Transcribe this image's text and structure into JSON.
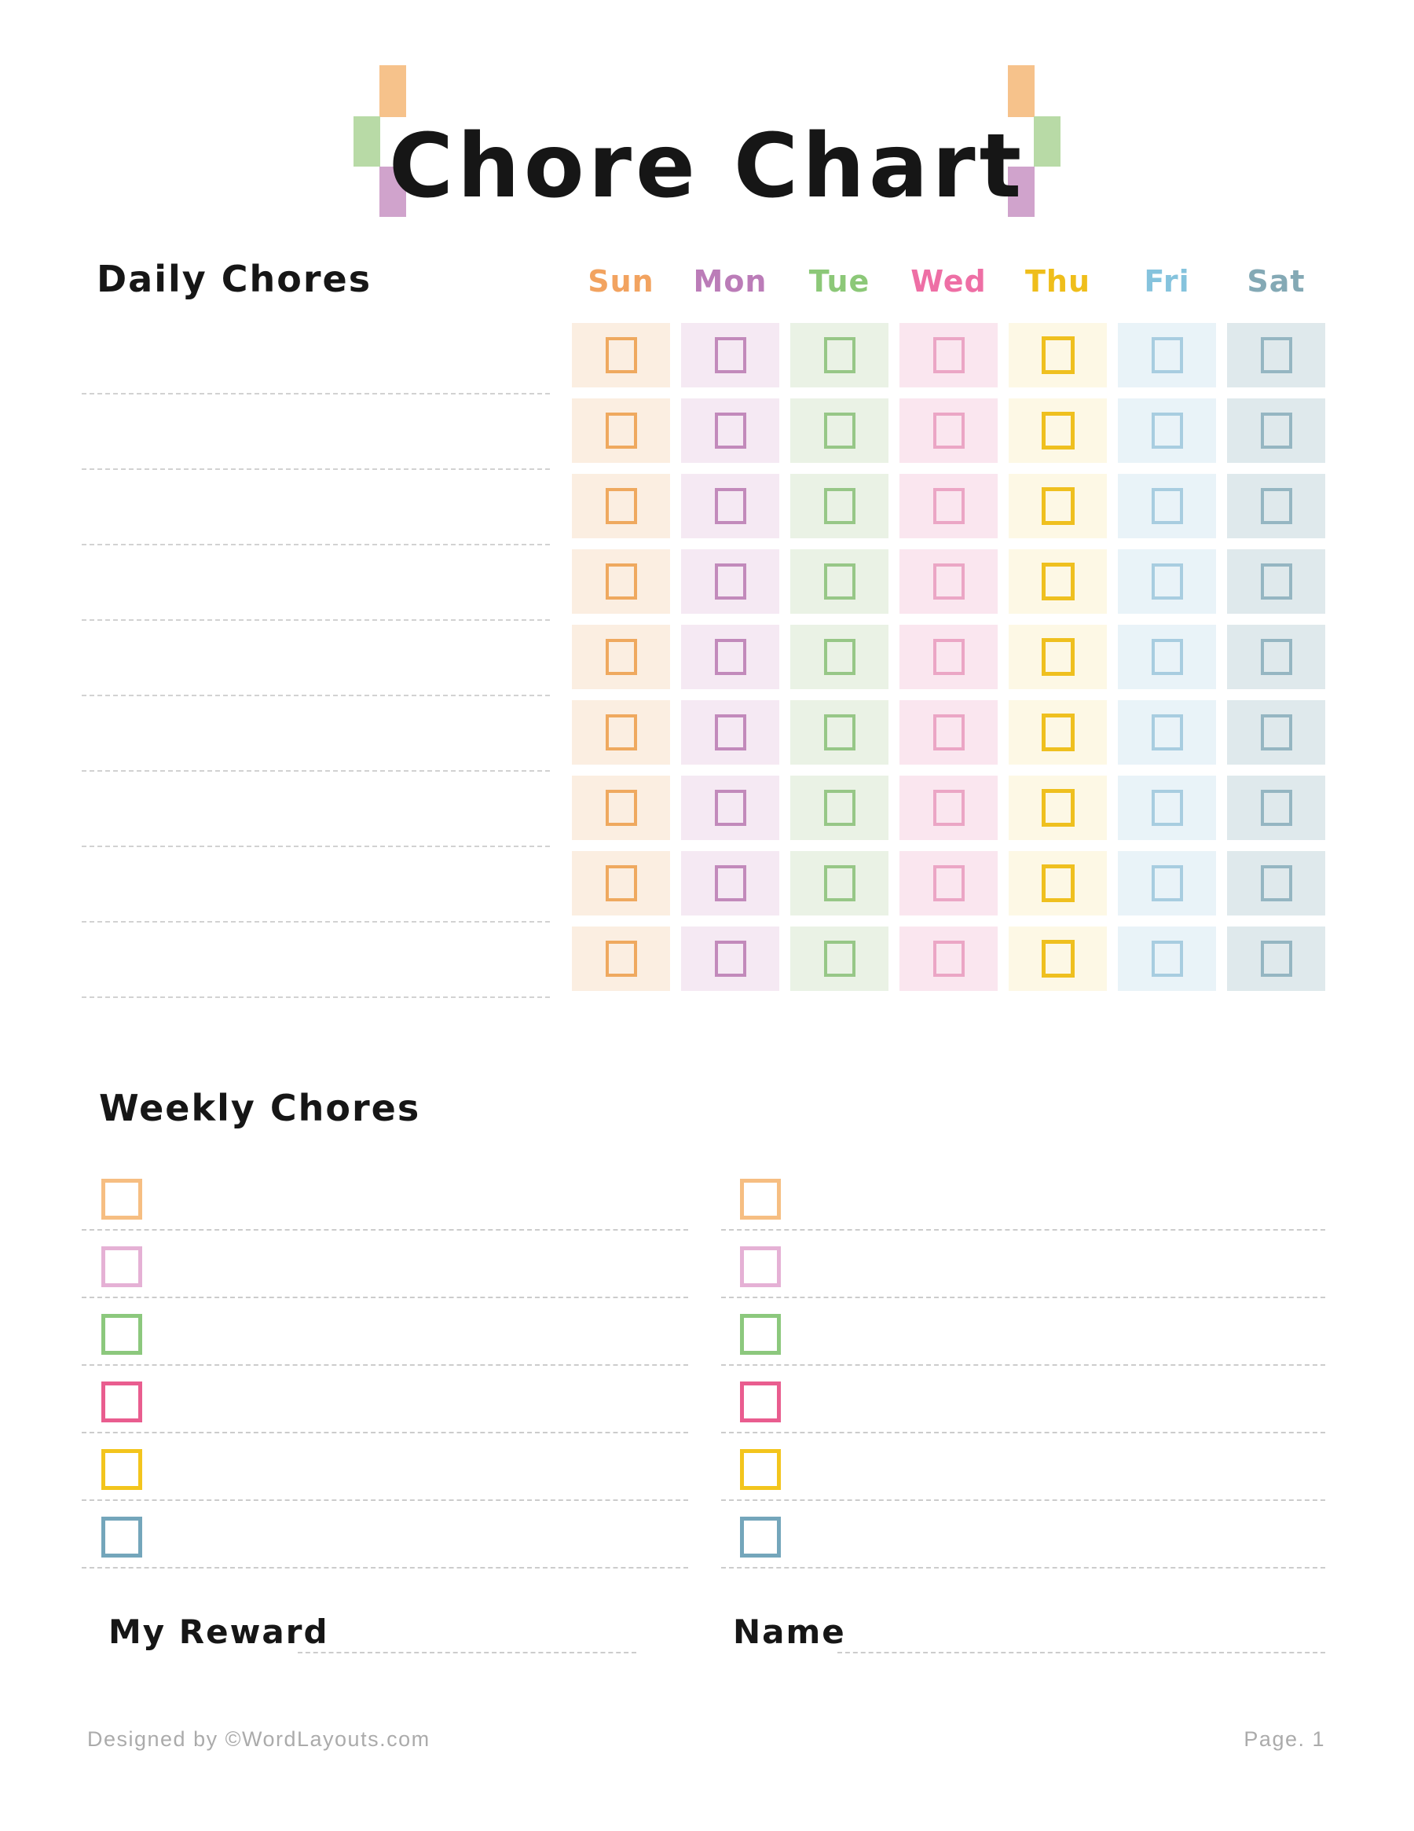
{
  "title": "Chore Chart",
  "decor": {
    "orange": "#F6C28B",
    "green": "#B8DAA6",
    "purple": "#D0A3CC"
  },
  "daily": {
    "heading": "Daily Chores",
    "rows": 9,
    "days": [
      {
        "label": "Sun",
        "text_color": "#F2A360",
        "cell_bg": "#FBEEE1",
        "box_border": "#EFA95F",
        "bold_box": false
      },
      {
        "label": "Mon",
        "text_color": "#BB7CB8",
        "cell_bg": "#F5E9F3",
        "box_border": "#C28ABB",
        "bold_box": false
      },
      {
        "label": "Tue",
        "text_color": "#8CC878",
        "cell_bg": "#EAF2E5",
        "box_border": "#97C787",
        "bold_box": false
      },
      {
        "label": "Wed",
        "text_color": "#EE6FA5",
        "cell_bg": "#FAE6EF",
        "box_border": "#EBA6C5",
        "bold_box": false
      },
      {
        "label": "Thu",
        "text_color": "#EFBE1B",
        "cell_bg": "#FDF8E5",
        "box_border": "#EFC01F",
        "bold_box": true
      },
      {
        "label": "Fri",
        "text_color": "#85C3DD",
        "cell_bg": "#E9F3F8",
        "box_border": "#A8CDE0",
        "bold_box": false
      },
      {
        "label": "Sat",
        "text_color": "#84A9B5",
        "cell_bg": "#DFE9EC",
        "box_border": "#95B6C2",
        "bold_box": false
      }
    ]
  },
  "weekly": {
    "heading": "Weekly Chores",
    "items_per_column": 6,
    "checkbox_colors": [
      "#F6BE82",
      "#E5B1D5",
      "#8CC87D",
      "#E95D8F",
      "#F3C51D",
      "#74A6BB"
    ]
  },
  "fields": {
    "reward_label": "My Reward",
    "name_label": "Name"
  },
  "footer": {
    "credit": "Designed by ©WordLayouts.com",
    "page": "Page. 1"
  }
}
